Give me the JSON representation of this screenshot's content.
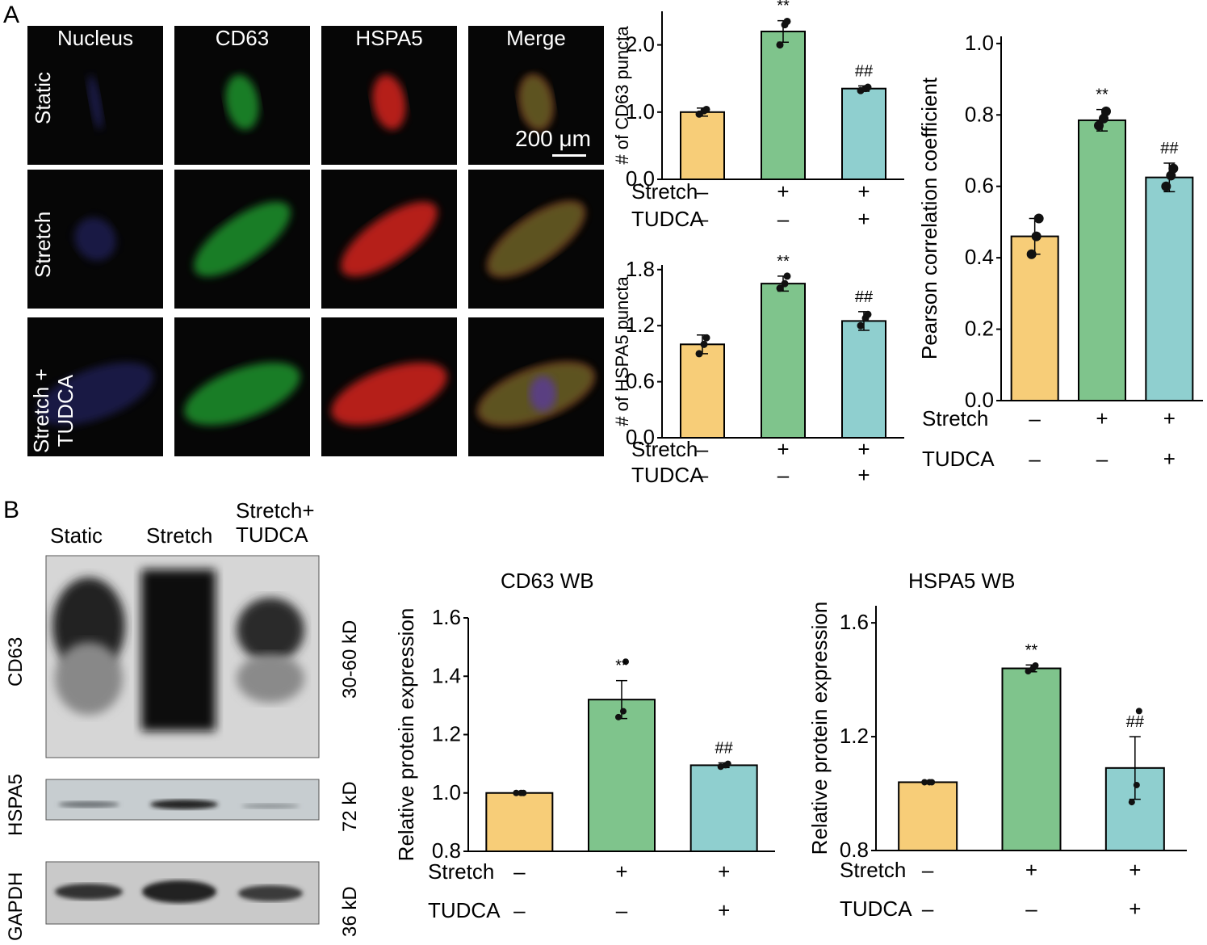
{
  "panel_a": {
    "letter": "A",
    "columns": [
      "Nucleus",
      "CD63",
      "HSPA5",
      "Merge"
    ],
    "rows": [
      {
        "line1": "Static",
        "line2": ""
      },
      {
        "line1": "Stretch",
        "line2": ""
      },
      {
        "line1": "Stretch +",
        "line2": "TUDCA"
      }
    ],
    "scale_bar": "200 μm"
  },
  "panel_b": {
    "letter": "B",
    "lanes": [
      {
        "line1": "Static",
        "line2": ""
      },
      {
        "line1": "Stretch",
        "line2": ""
      },
      {
        "line1": "Stretch+",
        "line2": "TUDCA"
      }
    ],
    "blots": [
      {
        "protein": "CD63",
        "size": "30-60 kD"
      },
      {
        "protein": "HSPA5",
        "size": "72 kD"
      },
      {
        "protein": "GAPDH",
        "size": "36 kD"
      }
    ]
  },
  "colors": {
    "static": "#f7cd78",
    "stretch": "#7fc48c",
    "tudca": "#8fcfcf"
  },
  "chart_data": [
    {
      "id": "cd63_puncta",
      "type": "bar",
      "title": "",
      "ylabel": "# of CD63 puncta",
      "categories": [
        "Static",
        "Stretch",
        "Stretch+TUDCA"
      ],
      "values": [
        1.0,
        2.2,
        1.35
      ],
      "errors": [
        0.06,
        0.16,
        0.04
      ],
      "points": [
        [
          0.97,
          1.02,
          1.04
        ],
        [
          2.0,
          2.3,
          2.35
        ],
        [
          1.32,
          1.35,
          1.37
        ]
      ],
      "annotations": [
        "",
        "**",
        "##"
      ],
      "ylim": [
        0,
        2.5
      ],
      "yticks": [
        "0.0",
        "1.0",
        "2.0"
      ],
      "ytick_values": [
        0,
        1,
        2
      ],
      "factor_rows": [
        {
          "label": "Stretch",
          "marks": [
            "–",
            "+",
            "+"
          ]
        },
        {
          "label": "TUDCA",
          "marks": [
            "–",
            "–",
            "+"
          ]
        }
      ]
    },
    {
      "id": "hspa5_puncta",
      "type": "bar",
      "title": "",
      "ylabel": "# of HSPA5 puncta",
      "categories": [
        "Static",
        "Stretch",
        "Stretch+TUDCA"
      ],
      "values": [
        1.0,
        1.65,
        1.25
      ],
      "errors": [
        0.1,
        0.08,
        0.1
      ],
      "points": [
        [
          0.9,
          1.0,
          1.07
        ],
        [
          1.6,
          1.65,
          1.73
        ],
        [
          1.2,
          1.28,
          1.32
        ]
      ],
      "annotations": [
        "",
        "**",
        "##"
      ],
      "ylim": [
        0,
        1.85
      ],
      "yticks": [
        "0.0",
        "0.6",
        "1.2",
        "1.8"
      ],
      "ytick_values": [
        0,
        0.6,
        1.2,
        1.8
      ],
      "factor_rows": [
        {
          "label": "Stretch",
          "marks": [
            "–",
            "+",
            "+"
          ]
        },
        {
          "label": "TUDCA",
          "marks": [
            "–",
            "–",
            "+"
          ]
        }
      ]
    },
    {
      "id": "pearson",
      "type": "bar",
      "title": "",
      "ylabel": "Pearson correlation coefficient",
      "categories": [
        "Static",
        "Stretch",
        "Stretch+TUDCA"
      ],
      "values": [
        0.46,
        0.785,
        0.625
      ],
      "errors": [
        0.05,
        0.03,
        0.04
      ],
      "points": [
        [
          0.41,
          0.46,
          0.51
        ],
        [
          0.77,
          0.79,
          0.81
        ],
        [
          0.6,
          0.63,
          0.65
        ]
      ],
      "annotations": [
        "",
        "**",
        "##"
      ],
      "ylim": [
        0,
        1.02
      ],
      "yticks": [
        "0.0",
        "0.2",
        "0.4",
        "0.6",
        "0.8",
        "1.0"
      ],
      "ytick_values": [
        0,
        0.2,
        0.4,
        0.6,
        0.8,
        1.0
      ],
      "factor_rows": [
        {
          "label": "Stretch",
          "marks": [
            "–",
            "+",
            "+"
          ]
        },
        {
          "label": "TUDCA",
          "marks": [
            "–",
            "–",
            "+"
          ]
        }
      ]
    },
    {
      "id": "cd63_wb",
      "type": "bar",
      "title": "CD63 WB",
      "ylabel": "Relative protein expression",
      "categories": [
        "Static",
        "Stretch",
        "Stretch+TUDCA"
      ],
      "values": [
        1.0,
        1.32,
        1.095
      ],
      "errors": [
        0.003,
        0.065,
        0.008
      ],
      "points": [
        [
          1.0,
          1.0,
          1.0
        ],
        [
          1.26,
          1.28,
          1.45
        ],
        [
          1.09,
          1.095,
          1.1
        ]
      ],
      "annotations": [
        "",
        "**",
        "##"
      ],
      "ylim": [
        0.8,
        1.6
      ],
      "yticks": [
        "0.8",
        "1.0",
        "1.2",
        "1.4",
        "1.6"
      ],
      "ytick_values": [
        0.8,
        1.0,
        1.2,
        1.4,
        1.6
      ],
      "factor_rows": [
        {
          "label": "Stretch",
          "marks": [
            "–",
            "+",
            "+"
          ]
        },
        {
          "label": "TUDCA",
          "marks": [
            "–",
            "–",
            "+"
          ]
        }
      ]
    },
    {
      "id": "hspa5_wb",
      "type": "bar",
      "title": "HSPA5 WB",
      "ylabel": "Relative protein expression",
      "categories": [
        "Static",
        "Stretch",
        "Stretch+TUDCA"
      ],
      "values": [
        1.04,
        1.44,
        1.09
      ],
      "errors": [
        0.003,
        0.012,
        0.11
      ],
      "points": [
        [
          1.04,
          1.04,
          1.04
        ],
        [
          1.43,
          1.44,
          1.45
        ],
        [
          0.97,
          1.03,
          1.29
        ]
      ],
      "annotations": [
        "",
        "**",
        "##"
      ],
      "ylim": [
        0.8,
        1.66
      ],
      "yticks": [
        "0.8",
        "1.2",
        "1.6"
      ],
      "ytick_values": [
        0.8,
        1.2,
        1.6
      ],
      "factor_rows": [
        {
          "label": "Stretch",
          "marks": [
            "–",
            "+",
            "+"
          ]
        },
        {
          "label": "TUDCA",
          "marks": [
            "–",
            "–",
            "+"
          ]
        }
      ]
    }
  ]
}
